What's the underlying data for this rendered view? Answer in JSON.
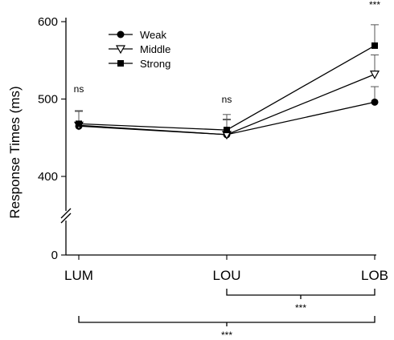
{
  "chart_data": {
    "type": "line",
    "ylabel": "Response Times (ms)",
    "xlabel": "",
    "categories": [
      "LUM",
      "LOU",
      "LOB"
    ],
    "y_ticks": [
      "0",
      "400",
      "500",
      "600"
    ],
    "ylim": [
      400,
      600
    ],
    "axis_break": true,
    "legend_position": "top-left",
    "series": [
      {
        "name": "Weak",
        "marker": "filled-circle",
        "values": [
          465,
          454,
          496
        ],
        "err": [
          20,
          20,
          20
        ]
      },
      {
        "name": "Middle",
        "marker": "open-triangle",
        "values": [
          466,
          454,
          532
        ],
        "err": [
          18,
          19,
          25
        ]
      },
      {
        "name": "Strong",
        "marker": "filled-square",
        "values": [
          468,
          460,
          569
        ],
        "err": [
          17,
          20,
          27
        ]
      }
    ],
    "annotations": [
      {
        "text": "ns",
        "category": "LUM"
      },
      {
        "text": "ns",
        "category": "LOU"
      },
      {
        "text": "***",
        "category": "LOB"
      }
    ],
    "brackets": [
      {
        "from": "LOU",
        "to": "LOB",
        "text": "***"
      },
      {
        "from": "LUM",
        "to": "LOB",
        "text": "***"
      }
    ],
    "grid": false
  }
}
